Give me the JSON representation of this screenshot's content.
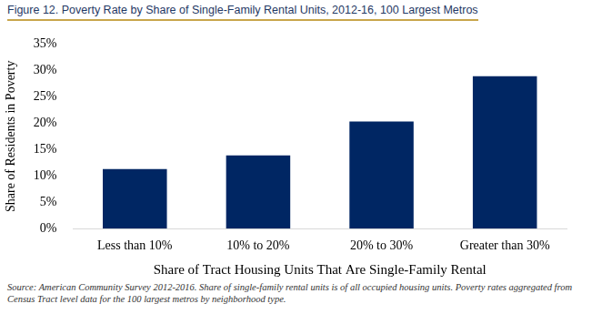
{
  "chart_data": {
    "type": "bar",
    "title": "Figure 12. Poverty Rate by Share of Single-Family Rental Units, 2012-16, 100 Largest Metros",
    "x_label": "Share of Tract Housing Units That Are Single-Family Rental",
    "y_label": "Share of Residents in Poverty",
    "caption": "Source: American Community Survey 2012-2016. Share of single-family rental units is of all occupied housing units.  Poverty rates aggregated from Census Tract level data for the 100 largest metros by neighborhood type.",
    "categories": [
      "Less than 10%",
      "10% to 20%",
      "20% to 30%",
      "Greater than 30%"
    ],
    "values": [
      11.3,
      13.9,
      20.3,
      28.9
    ],
    "color": "#002663",
    "ylim": [
      0,
      35
    ],
    "yticks": [
      {
        "value": 0,
        "label": "0%"
      },
      {
        "value": 5,
        "label": "5%"
      },
      {
        "value": 10,
        "label": "10%"
      },
      {
        "value": 15,
        "label": "15%"
      },
      {
        "value": 20,
        "label": "20%"
      },
      {
        "value": 25,
        "label": "25%"
      },
      {
        "value": 30,
        "label": "30%"
      },
      {
        "value": 35,
        "label": "35%"
      }
    ],
    "grid": false
  }
}
